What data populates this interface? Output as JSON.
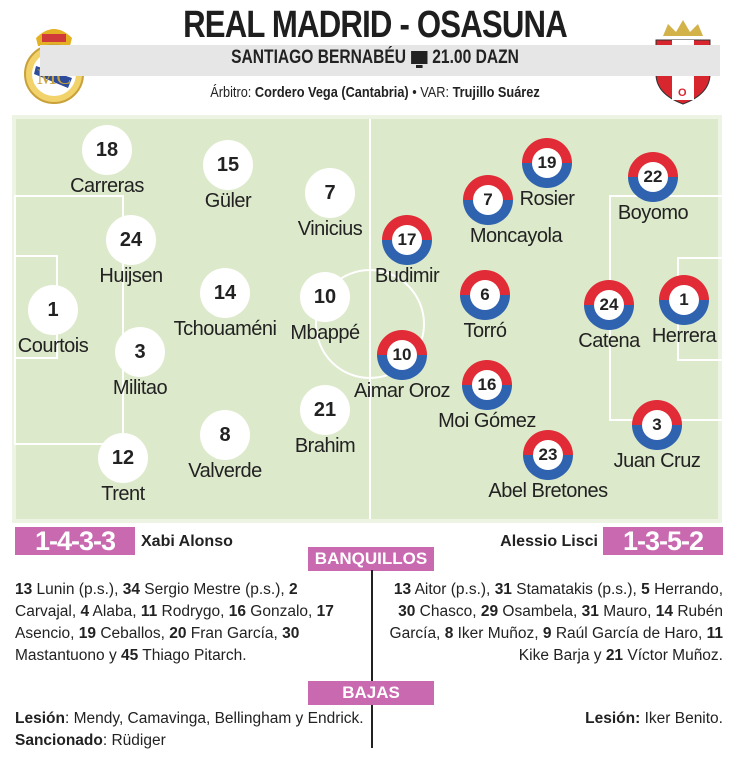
{
  "header": {
    "title": "REAL MADRID - OSASUNA",
    "stadium": "SANTIAGO BERNABÉU",
    "time_tv": "21.00 DAZN",
    "referee_label": "Árbitro:",
    "referee": "Cordero Vega (Cantabria)",
    "sep": "•",
    "var_label": "VAR:",
    "var": "Trujillo Suárez"
  },
  "colors": {
    "osasuna_red": "#e12b36",
    "osasuna_blue": "#2f63b0",
    "accent_pink": "#c969b0",
    "pitch": "#dde9cb"
  },
  "home": {
    "formation": "1-4-3-3",
    "coach": "Xabi Alonso",
    "players": [
      {
        "n": "18",
        "name": "Carreras"
      },
      {
        "n": "15",
        "name": "Güler"
      },
      {
        "n": "7",
        "name": "Vinicius"
      },
      {
        "n": "24",
        "name": "Huijsen"
      },
      {
        "n": "14",
        "name": "Tchouaméni"
      },
      {
        "n": "10",
        "name": "Mbappé"
      },
      {
        "n": "1",
        "name": "Courtois"
      },
      {
        "n": "3",
        "name": "Militao"
      },
      {
        "n": "21",
        "name": "Brahim"
      },
      {
        "n": "8",
        "name": "Valverde"
      },
      {
        "n": "12",
        "name": "Trent"
      }
    ]
  },
  "away": {
    "formation": "1-3-5-2",
    "coach": "Alessio Lisci",
    "players": [
      {
        "n": "19",
        "name": "Rosier"
      },
      {
        "n": "22",
        "name": "Boyomo"
      },
      {
        "n": "7",
        "name": "Moncayola"
      },
      {
        "n": "17",
        "name": "Budimir"
      },
      {
        "n": "6",
        "name": "Torró"
      },
      {
        "n": "24",
        "name": "Catena"
      },
      {
        "n": "1",
        "name": "Herrera"
      },
      {
        "n": "10",
        "name": "Aimar Oroz"
      },
      {
        "n": "16",
        "name": "Moi Gómez"
      },
      {
        "n": "3",
        "name": "Juan Cruz"
      },
      {
        "n": "23",
        "name": "Abel Bretones"
      }
    ]
  },
  "bench": {
    "title": "BANQUILLOS",
    "home": [
      [
        "13",
        " Lunin (p.s.), "
      ],
      [
        "34",
        " Sergio Mestre (p.s.), "
      ],
      [
        "2",
        " Carvajal, "
      ],
      [
        "4",
        " Alaba, "
      ],
      [
        "11",
        " Rodrygo, "
      ],
      [
        "16",
        " Gonzalo, "
      ],
      [
        "17",
        " Asencio, "
      ],
      [
        "19",
        " Ceballos,  "
      ],
      [
        "20",
        " Fran García, "
      ],
      [
        "30",
        " Mastantuono "
      ],
      [
        "y ",
        ""
      ],
      [
        "45",
        " Thiago Pitarch."
      ]
    ],
    "away": [
      [
        "13",
        " Aitor (p.s.), "
      ],
      [
        "31",
        " Stamatakis (p.s.), "
      ],
      [
        "5",
        " Herrando, "
      ],
      [
        "30",
        " Chasco, "
      ],
      [
        "29",
        " Osambela, "
      ],
      [
        "31",
        " Mauro,  "
      ],
      [
        "14",
        " Rubén García, "
      ],
      [
        "8",
        " Iker Muñoz, "
      ],
      [
        "9",
        " Raúl García de Haro, "
      ],
      [
        "11",
        " Kike Barja y "
      ],
      [
        "21",
        " Víctor Muñoz."
      ]
    ]
  },
  "absences": {
    "title": "BAJAS",
    "home_injury_label": "Lesión",
    "home_injury": ": Mendy, Camavinga, Bellingham y Endrick.",
    "home_susp_label": "Sancionado",
    "home_susp": ": Rüdiger",
    "away_injury_label": "Lesión:",
    "away_injury": " Iker Benito."
  }
}
